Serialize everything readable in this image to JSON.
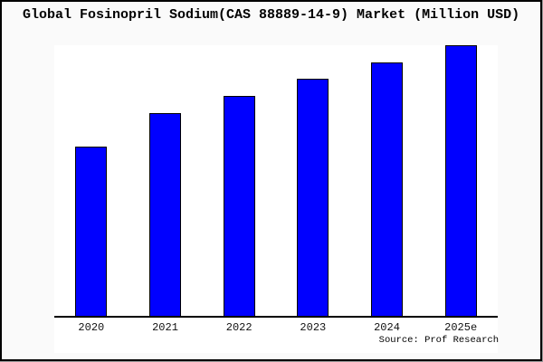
{
  "chart_data": {
    "type": "bar",
    "title": "Global Fosinopril Sodium(CAS 88889-14-9) Market (Million USD)",
    "categories": [
      "2020",
      "2021",
      "2022",
      "2023",
      "2024",
      "2025e"
    ],
    "values": [
      62.6,
      75.0,
      81.3,
      87.6,
      93.7,
      100.0
    ],
    "values_unit": "percent of tallest bar (no y-axis scale shown in image)",
    "xlabel": "",
    "ylabel": "",
    "ylim": [
      0,
      100
    ],
    "grid": false,
    "legend": false,
    "bar_color": "#0000ff",
    "bar_edge_color": "#000000",
    "source": "Source: Prof Research"
  },
  "colors": {
    "figure_background": "#fafafa",
    "plot_background": "#ffffff",
    "frame_border": "#000000",
    "frame_shadow": "#9a9a9a",
    "axis_line": "#000000",
    "text": "#000000"
  }
}
